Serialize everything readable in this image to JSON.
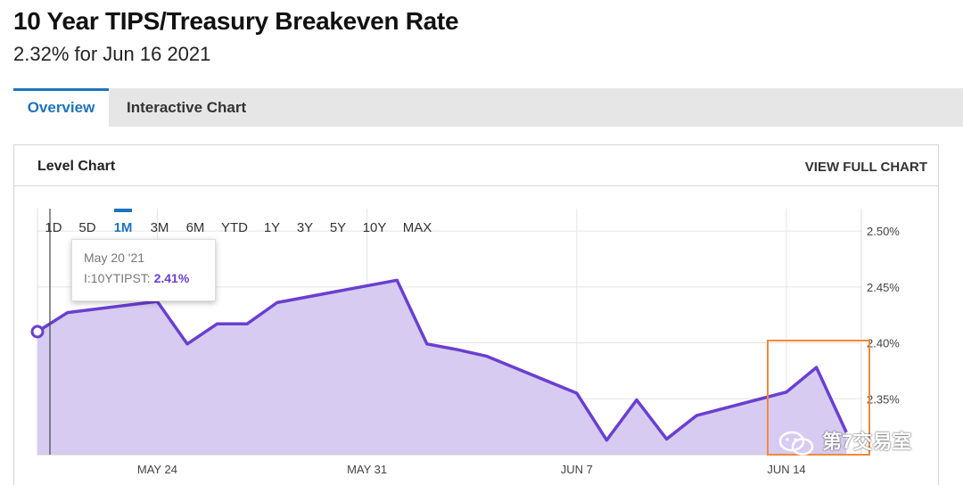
{
  "header": {
    "title": "10 Year TIPS/Treasury Breakeven Rate",
    "subtitle": "2.32% for Jun 16 2021"
  },
  "tabs": [
    {
      "label": "Overview",
      "active": true
    },
    {
      "label": "Interactive Chart",
      "active": false
    }
  ],
  "panel": {
    "title": "Level Chart",
    "view_full_label": "VIEW FULL CHART"
  },
  "ranges": [
    "1D",
    "5D",
    "1M",
    "3M",
    "6M",
    "YTD",
    "1Y",
    "3Y",
    "5Y",
    "10Y",
    "MAX"
  ],
  "active_range": "1M",
  "tooltip": {
    "date": "May 20 '21",
    "series": "I:10YTIPST:",
    "value": "2.41%"
  },
  "watermark": "第7交易室",
  "colors": {
    "line": "#6a3fd1",
    "fill": "#d7cbf1",
    "accent": "#1e73be",
    "highlight": "#f08a3c"
  },
  "chart_data": {
    "type": "area",
    "x": [
      "2021-05-20",
      "2021-05-21",
      "2021-05-24",
      "2021-05-25",
      "2021-05-26",
      "2021-05-27",
      "2021-05-28",
      "2021-06-01",
      "2021-06-02",
      "2021-06-03",
      "2021-06-04",
      "2021-06-07",
      "2021-06-08",
      "2021-06-09",
      "2021-06-10",
      "2021-06-11",
      "2021-06-14",
      "2021-06-15",
      "2021-06-16"
    ],
    "y": [
      2.41,
      2.427,
      2.437,
      2.399,
      2.417,
      2.417,
      2.436,
      2.456,
      2.399,
      2.394,
      2.388,
      2.355,
      2.313,
      2.349,
      2.314,
      2.335,
      2.356,
      2.378,
      2.32
    ],
    "ylim": [
      2.3,
      2.52
    ],
    "yticks": [
      2.35,
      2.4,
      2.45,
      2.5
    ],
    "ytick_labels": [
      "2.35%",
      "2.40%",
      "2.45%",
      "2.50%"
    ],
    "xticks": [
      "2021-05-24",
      "2021-05-31",
      "2021-06-07",
      "2021-06-14"
    ],
    "xtick_labels": [
      "MAY 24",
      "MAY 31",
      "JUN 7",
      "JUN 14"
    ],
    "grid": true
  }
}
